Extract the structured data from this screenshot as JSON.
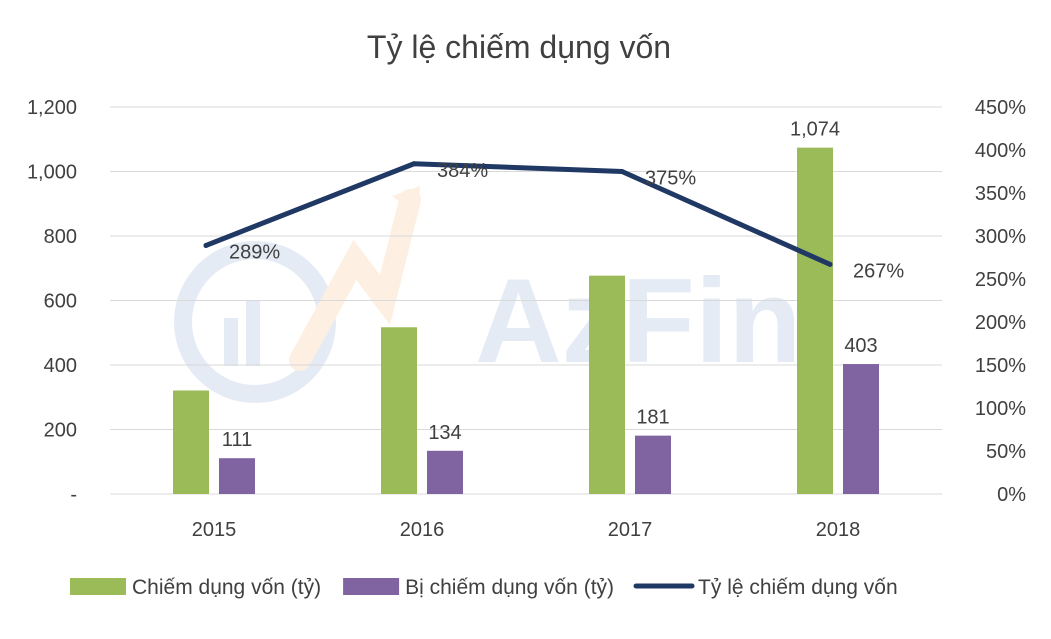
{
  "chart_data": {
    "type": "bar",
    "title": "Tỷ lệ chiếm dụng vốn",
    "categories": [
      "2015",
      "2016",
      "2017",
      "2018"
    ],
    "series": [
      {
        "name": "Chiếm dụng vốn (tỷ)",
        "type": "bar",
        "axis": "left",
        "color": "#9bbb59",
        "values": [
          321,
          517,
          677,
          1074
        ],
        "labels": [
          null,
          null,
          null,
          "1,074"
        ]
      },
      {
        "name": "Bị chiếm dụng vốn (tỷ)",
        "type": "bar",
        "axis": "right-none",
        "color": "#8064a2",
        "values": [
          111,
          134,
          181,
          403
        ],
        "labels": [
          "111",
          "134",
          "181",
          "403"
        ]
      },
      {
        "name": "Tỷ lệ chiếm dụng vốn",
        "type": "line",
        "axis": "secondary",
        "color": "#1f3864",
        "values": [
          289,
          384,
          375,
          267
        ],
        "labels": [
          "289%",
          "384%",
          "375%",
          "267%"
        ]
      }
    ],
    "y_left": {
      "min": 0,
      "max": 1200,
      "step": 200,
      "tick_labels": [
        "-",
        "200",
        "400",
        "600",
        "800",
        "1,000",
        "1,200"
      ]
    },
    "y_right": {
      "min": 0,
      "max": 450,
      "step": 50,
      "tick_labels": [
        "0%",
        "50%",
        "100%",
        "150%",
        "200%",
        "250%",
        "300%",
        "350%",
        "400%",
        "450%"
      ]
    },
    "grid": true,
    "legend_position": "bottom",
    "watermark_text": "AzFin"
  }
}
